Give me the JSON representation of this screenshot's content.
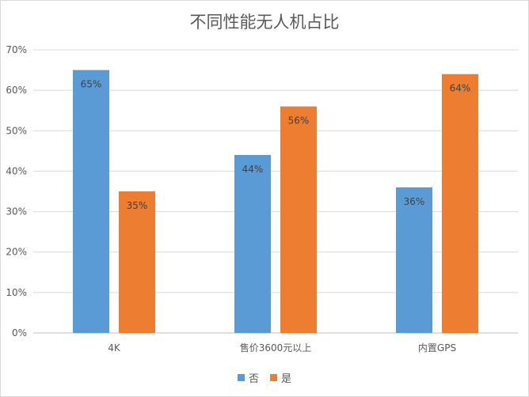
{
  "chart_data": {
    "type": "bar",
    "title": "不同性能无人机占比",
    "categories": [
      "4K",
      "售价3600元以上",
      "内置GPS"
    ],
    "series": [
      {
        "name": "否",
        "color": "#5b9bd5",
        "values": [
          65,
          44,
          36
        ],
        "labels": [
          "65%",
          "44%",
          "36%"
        ]
      },
      {
        "name": "是",
        "color": "#ed7d31",
        "values": [
          35,
          56,
          64
        ],
        "labels": [
          "35%",
          "56%",
          "64%"
        ]
      }
    ],
    "ylim": [
      0,
      70
    ],
    "yticks": [
      0,
      10,
      20,
      30,
      40,
      50,
      60,
      70
    ],
    "ytick_labels": [
      "0%",
      "10%",
      "20%",
      "30%",
      "40%",
      "50%",
      "60%",
      "70%"
    ],
    "grid": true,
    "legend_position": "bottom"
  }
}
